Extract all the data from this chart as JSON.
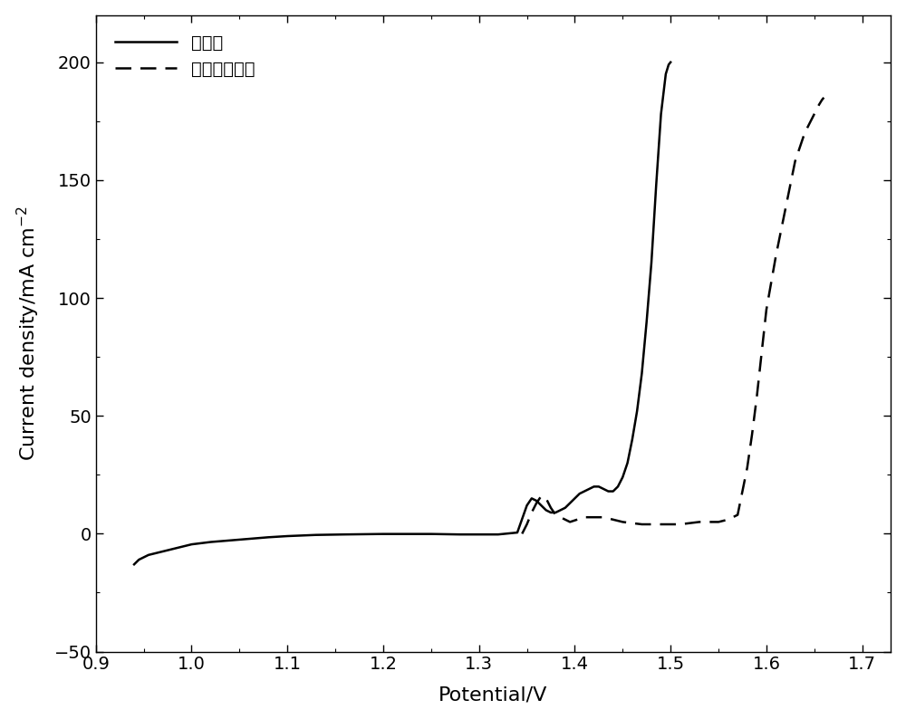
{
  "title": "",
  "xlabel": "Potential/V",
  "ylabel": "Current density/mA cm$^{-2}$",
  "xlim": [
    0.93,
    1.73
  ],
  "ylim": [
    -50,
    220
  ],
  "xticks": [
    0.9,
    1.0,
    1.1,
    1.2,
    1.3,
    1.4,
    1.5,
    1.6,
    1.7
  ],
  "yticks": [
    -50,
    0,
    50,
    100,
    150,
    200
  ],
  "legend1": "本发明",
  "legend2": "商业镍铁合金",
  "solid_x": [
    0.94,
    0.945,
    0.95,
    0.955,
    0.96,
    0.97,
    0.98,
    0.99,
    1.0,
    1.02,
    1.05,
    1.08,
    1.1,
    1.13,
    1.16,
    1.2,
    1.25,
    1.28,
    1.3,
    1.32,
    1.34,
    1.35,
    1.355,
    1.36,
    1.365,
    1.37,
    1.375,
    1.38,
    1.385,
    1.39,
    1.395,
    1.4,
    1.405,
    1.41,
    1.415,
    1.42,
    1.425,
    1.43,
    1.435,
    1.44,
    1.445,
    1.45,
    1.455,
    1.46,
    1.465,
    1.47,
    1.475,
    1.48,
    1.485,
    1.49,
    1.495,
    1.498,
    1.5
  ],
  "solid_y": [
    -13,
    -11,
    -10,
    -9,
    -8.5,
    -7.5,
    -6.5,
    -5.5,
    -4.5,
    -3.5,
    -2.5,
    -1.5,
    -1.0,
    -0.5,
    -0.3,
    -0.1,
    -0.1,
    -0.3,
    -0.3,
    -0.3,
    0.5,
    12,
    15,
    14,
    12,
    10,
    9,
    9,
    10,
    11,
    13,
    15,
    17,
    18,
    19,
    20,
    20,
    19,
    18,
    18,
    20,
    24,
    30,
    40,
    52,
    68,
    90,
    115,
    148,
    178,
    195,
    199,
    200
  ],
  "dashed_x": [
    1.345,
    1.35,
    1.355,
    1.36,
    1.365,
    1.37,
    1.375,
    1.38,
    1.395,
    1.41,
    1.43,
    1.45,
    1.47,
    1.49,
    1.51,
    1.53,
    1.55,
    1.56,
    1.57,
    1.575,
    1.58,
    1.585,
    1.59,
    1.6,
    1.61,
    1.62,
    1.63,
    1.64,
    1.65,
    1.655,
    1.658,
    1.66
  ],
  "dashed_y": [
    0,
    4,
    9,
    13,
    16,
    15,
    11,
    8,
    5,
    7,
    7,
    5,
    4,
    4,
    4,
    5,
    5,
    6,
    8,
    18,
    28,
    42,
    58,
    95,
    118,
    138,
    158,
    170,
    178,
    182,
    184,
    185
  ],
  "line_color": "#000000",
  "linewidth": 1.8,
  "fontsize_label": 16,
  "fontsize_tick": 14,
  "fontsize_legend": 14,
  "background_color": "#ffffff"
}
